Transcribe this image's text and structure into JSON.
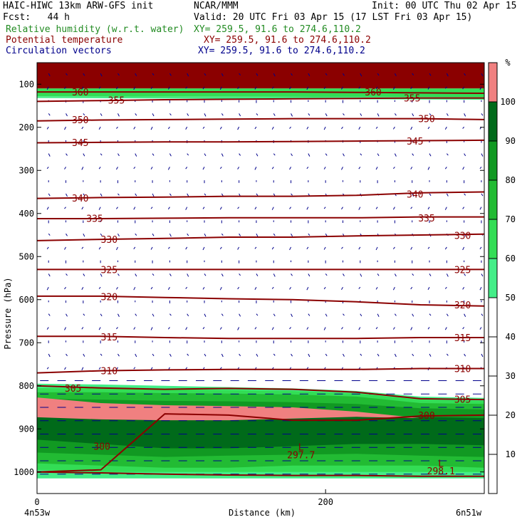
{
  "header": {
    "model": "HAIC-HIWC 13km ARW-GFS init",
    "org": "NCAR/MMM",
    "init": "Init: 00 UTC Thu 02 Apr 15",
    "fcst": "Fcst:   44 h",
    "valid": "Valid: 20 UTC Fri 03 Apr 15 (17 LST Fri 03 Apr 15)",
    "rh_label": "Relative humidity (w.r.t. water)",
    "rh_xy": "XY= 259.5, 91.6 to 274.6,110.2",
    "theta_label": "Potential temperature",
    "theta_xy": "XY= 259.5, 91.6 to 274.6,110.2",
    "vec_label": "Circulation vectors",
    "vec_xy": "XY= 259.5, 91.6 to 274.6,110.2",
    "rh_color": "#228B22",
    "theta_color": "#8B0000",
    "vec_color": "#00008B"
  },
  "chart_data": {
    "type": "heatmap",
    "xlabel": "Distance (km)",
    "ylabel": "Pressure (hPa)",
    "xlim": [
      0,
      310
    ],
    "ylim": [
      1050,
      50
    ],
    "x_ticks": [
      0,
      200
    ],
    "y_ticks": [
      100,
      200,
      300,
      400,
      500,
      600,
      700,
      800,
      900,
      1000
    ],
    "x_left_label": "4n53w",
    "x_right_label": "6n51w",
    "colorbar": {
      "unit": "%",
      "ticks": [
        10,
        20,
        30,
        40,
        50,
        60,
        70,
        80,
        90,
        100
      ],
      "bands": [
        {
          "from": 0,
          "to": 50,
          "color": "#ffffff"
        },
        {
          "from": 50,
          "to": 60,
          "color": "#44ee88"
        },
        {
          "from": 60,
          "to": 70,
          "color": "#33dd55"
        },
        {
          "from": 70,
          "to": 80,
          "color": "#22bb33"
        },
        {
          "from": 80,
          "to": 90,
          "color": "#119922"
        },
        {
          "from": 90,
          "to": 100,
          "color": "#006a1a"
        },
        {
          "from": 100,
          "to": 110,
          "color": "#f08080"
        }
      ]
    },
    "rh_layers": [
      {
        "color": "#8b0000",
        "top": [
          50,
          50
        ],
        "bottom": [
          110,
          110
        ]
      },
      {
        "color": "#33dd55",
        "top": [
          110,
          110
        ],
        "bottom": [
          128,
          130
        ]
      },
      {
        "color": "#44ee88",
        "top": [
          128,
          130
        ],
        "bottom": [
          132,
          136
        ]
      },
      {
        "color": "#44ee88",
        "top": [
          795,
          797,
          800,
          803,
          806,
          812,
          825,
          828
        ],
        "bottom": [
          1015,
          1015,
          1015,
          1015,
          1015,
          1015,
          1015,
          1015
        ]
      },
      {
        "color": "#33dd55",
        "top": [
          805,
          806,
          808,
          810,
          812,
          818,
          832,
          835
        ],
        "bottom": [
          995,
          1000,
          1000,
          1000,
          1000,
          1000,
          1000,
          1000
        ]
      },
      {
        "color": "#22bb33",
        "top": [
          815,
          815,
          817,
          818,
          820,
          825,
          840,
          842
        ],
        "bottom": [
          980,
          985,
          990,
          990,
          985,
          985,
          985,
          990
        ]
      },
      {
        "color": "#119922",
        "top": [
          830,
          832,
          835,
          836,
          838,
          842,
          852,
          855
        ],
        "bottom": [
          955,
          960,
          965,
          962,
          960,
          958,
          962,
          965
        ]
      },
      {
        "color": "#006a1a",
        "top": [
          860,
          862,
          865,
          866,
          868,
          870,
          872,
          875
        ],
        "bottom": [
          925,
          935,
          945,
          945,
          940,
          935,
          935,
          938
        ]
      },
      {
        "color": "#f08080",
        "top": [
          827,
          840,
          845,
          847,
          850,
          860,
          875,
          875
        ],
        "bottom": [
          873,
          878,
          880,
          880,
          876,
          872,
          875,
          875
        ]
      }
    ],
    "theta_contours": [
      {
        "label": "360",
        "p": [
          118,
          118,
          118,
          118,
          118,
          119,
          120,
          121
        ],
        "label_pos": [
          [
            30,
            118
          ],
          [
            233,
            118
          ]
        ]
      },
      {
        "label": "355",
        "p": [
          140,
          138,
          136,
          135,
          134,
          133,
          132,
          132
        ],
        "label_pos": [
          [
            55,
            137
          ],
          [
            260,
            132
          ]
        ]
      },
      {
        "label": "350",
        "p": [
          185,
          183,
          182,
          181,
          180,
          180,
          180,
          182
        ],
        "label_pos": [
          [
            30,
            182
          ],
          [
            270,
            180
          ]
        ]
      },
      {
        "label": "345",
        "p": [
          236,
          235,
          234,
          234,
          233,
          232,
          231,
          230
        ],
        "label_pos": [
          [
            30,
            235
          ],
          [
            262,
            232
          ]
        ]
      },
      {
        "label": "340",
        "p": [
          365,
          363,
          362,
          360,
          360,
          358,
          352,
          350
        ],
        "label_pos": [
          [
            30,
            364
          ],
          [
            262,
            355
          ]
        ]
      },
      {
        "label": "335",
        "p": [
          412,
          412,
          411,
          410,
          410,
          410,
          408,
          408
        ],
        "label_pos": [
          [
            40,
            411
          ],
          [
            270,
            410
          ]
        ]
      },
      {
        "label": "330",
        "p": [
          463,
          460,
          458,
          455,
          455,
          452,
          450,
          448
        ],
        "label_pos": [
          [
            50,
            460
          ],
          [
            295,
            451
          ]
        ]
      },
      {
        "label": "325",
        "p": [
          530,
          530,
          530,
          530,
          530,
          530,
          530,
          530
        ],
        "label_pos": [
          [
            50,
            530
          ],
          [
            295,
            530
          ]
        ]
      },
      {
        "label": "320",
        "p": [
          592,
          592,
          595,
          598,
          600,
          605,
          612,
          615
        ],
        "label_pos": [
          [
            50,
            593
          ],
          [
            295,
            612
          ]
        ]
      },
      {
        "label": "315",
        "p": [
          685,
          685,
          688,
          690,
          690,
          690,
          688,
          688
        ],
        "label_pos": [
          [
            50,
            686
          ],
          [
            295,
            688
          ]
        ]
      },
      {
        "label": "310",
        "p": [
          770,
          765,
          763,
          762,
          762,
          762,
          760,
          760
        ],
        "label_pos": [
          [
            50,
            765
          ],
          [
            295,
            760
          ]
        ]
      },
      {
        "label": "305",
        "p": [
          800,
          805,
          808,
          806,
          808,
          815,
          830,
          832
        ],
        "label_pos": [
          [
            25,
            805
          ],
          [
            295,
            831
          ]
        ]
      },
      {
        "label": "300",
        "p": [
          1000,
          995,
          865,
          868,
          880,
          880,
          870,
          868
        ],
        "label_pos": [
          [
            45,
            940
          ],
          [
            270,
            868
          ]
        ]
      }
    ],
    "surface": {
      "p": [
        1000,
        1002,
        1005,
        1007,
        1008,
        1008,
        1010,
        1010
      ],
      "label": "297.7",
      "label2": "298.1"
    },
    "min_markers": [
      {
        "x": 183,
        "p": 950,
        "text": "L"
      },
      {
        "x": 280,
        "p": 988,
        "text": "L"
      }
    ]
  }
}
